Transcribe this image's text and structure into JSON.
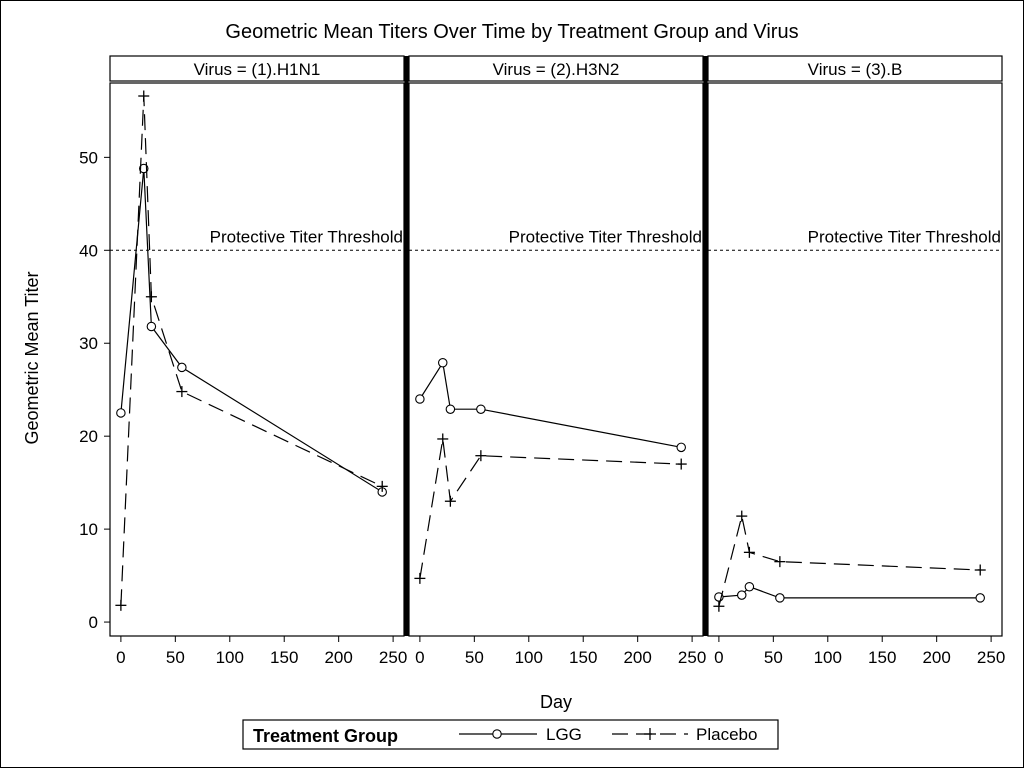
{
  "chart_data": {
    "type": "line",
    "title": "Geometric Mean Titers Over Time by Treatment Group and Virus",
    "xlabel": "Day",
    "ylabel": "Geometric Mean Titer",
    "xlim": [
      -10,
      260
    ],
    "ylim": [
      -1.5,
      58
    ],
    "x_ticks": [
      0,
      50,
      100,
      150,
      200,
      250
    ],
    "y_ticks": [
      0,
      10,
      20,
      30,
      40,
      50
    ],
    "grid": false,
    "reference_line": {
      "y": 40,
      "label": "Protective Titer Threshold"
    },
    "legend": {
      "title": "Treatment Group",
      "placement": "bottom",
      "entries": [
        "LGG",
        "Placebo"
      ]
    },
    "panels": [
      {
        "label": "Virus = (1).H1N1",
        "series": [
          {
            "name": "LGG",
            "x": [
              0,
              21,
              28,
              56,
              240
            ],
            "y": [
              22.5,
              48.8,
              31.8,
              27.4,
              14.0
            ]
          },
          {
            "name": "Placebo",
            "x": [
              0,
              21,
              28,
              56,
              240
            ],
            "y": [
              1.8,
              56.6,
              35.0,
              24.8,
              14.6
            ]
          }
        ]
      },
      {
        "label": "Virus = (2).H3N2",
        "series": [
          {
            "name": "LGG",
            "x": [
              0,
              21,
              28,
              56,
              240
            ],
            "y": [
              24.0,
              27.9,
              22.9,
              22.9,
              18.8
            ]
          },
          {
            "name": "Placebo",
            "x": [
              0,
              21,
              28,
              56,
              240
            ],
            "y": [
              4.7,
              19.7,
              13.0,
              17.9,
              17.0
            ]
          }
        ]
      },
      {
        "label": "Virus = (3).B",
        "series": [
          {
            "name": "LGG",
            "x": [
              0,
              21,
              28,
              56,
              240
            ],
            "y": [
              2.7,
              2.9,
              3.8,
              2.6,
              2.6
            ]
          },
          {
            "name": "Placebo",
            "x": [
              0,
              21,
              28,
              56,
              240
            ],
            "y": [
              1.7,
              11.4,
              7.5,
              6.5,
              5.6
            ]
          }
        ]
      }
    ]
  }
}
